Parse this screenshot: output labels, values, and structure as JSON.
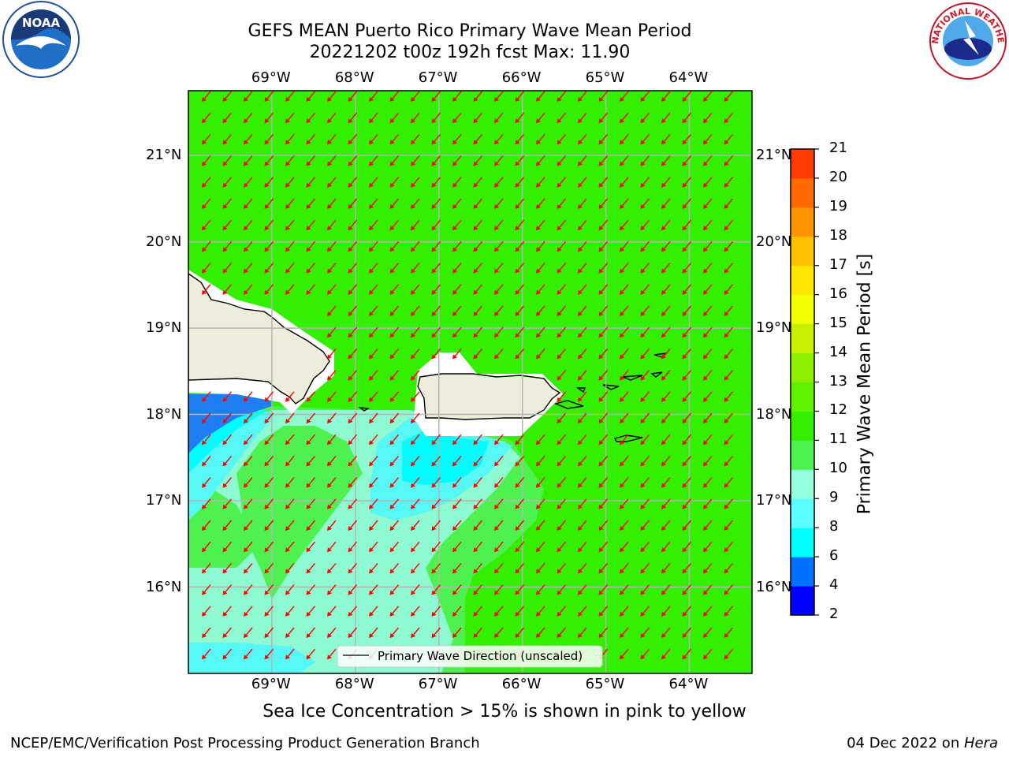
{
  "title": {
    "line1": "GEFS MEAN Puerto Rico Primary Wave Mean Period",
    "line2": "20221202 t00z 192h fcst   Max: 11.90"
  },
  "logos": {
    "left": "NOAA",
    "right": "NATIONAL WEATHER SERVICE"
  },
  "map": {
    "lon_labels": [
      "69°W",
      "68°W",
      "67°W",
      "66°W",
      "65°W",
      "64°W"
    ],
    "lat_labels": [
      "21°N",
      "20°N",
      "19°N",
      "18°N",
      "17°N",
      "16°N"
    ],
    "legend_label": "Primary Wave Direction (unscaled)",
    "lon_range": [
      -70.0,
      -63.25
    ],
    "lat_range": [
      15.0,
      21.75
    ],
    "arrow_direction": "southwest",
    "colors": {
      "land": "#eeecdb",
      "ocean_11_12": "#32f000",
      "ocean_10_11": "#4ef24e",
      "ocean_9_10": "#8dfad2",
      "ocean_8_9": "#55f8f5",
      "ocean_6_8": "#00fdfd",
      "ocean_4_6": "#1e7ff5",
      "arrow": "#ff0000",
      "grid": "#b4b4b4"
    }
  },
  "colorbar": {
    "label": "Primary Wave Mean Period [s]",
    "ticks": [
      "2",
      "4",
      "6",
      "8",
      "9",
      "10",
      "11",
      "12",
      "13",
      "14",
      "15",
      "16",
      "17",
      "18",
      "19",
      "20",
      "21"
    ],
    "colors": [
      "#0000ff",
      "#0070ff",
      "#00ffff",
      "#5cffff",
      "#96ffe0",
      "#4af250",
      "#32f000",
      "#5ef000",
      "#8cf000",
      "#c8f000",
      "#f0ff00",
      "#ffe600",
      "#ffc000",
      "#ff9500",
      "#ff6900",
      "#ff3c00",
      "#ff0000"
    ]
  },
  "caption": "Sea Ice Concentration > 15% is shown in pink to yellow",
  "footer": {
    "left": "NCEP/EMC/Verification Post Processing Product Generation Branch",
    "right_date": "04 Dec 2022 on ",
    "right_host": "Hera"
  }
}
